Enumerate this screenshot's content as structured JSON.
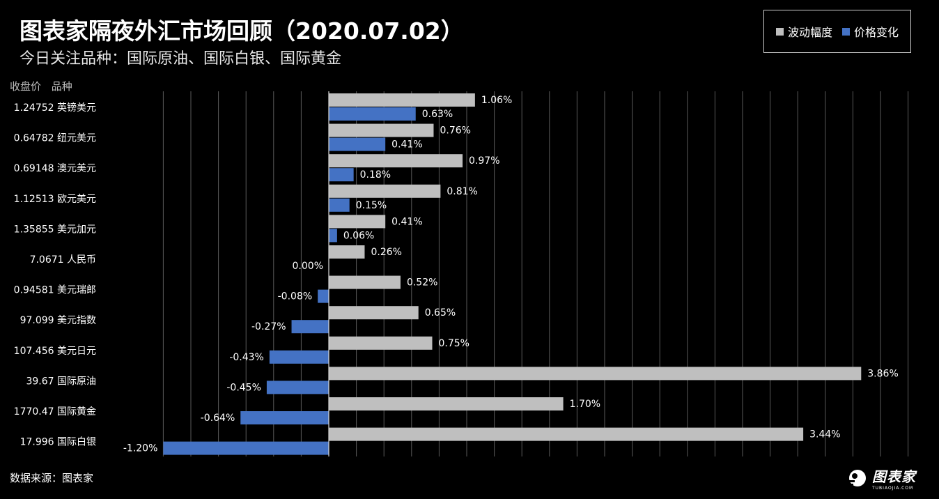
{
  "title": "图表家隔夜外汇市场回顾（2020.07.02）",
  "subtitle": "今日关注品种：国际原油、国际白银、国际黄金",
  "columns": {
    "price": "收盘价",
    "name": "品种"
  },
  "source": "数据来源：图表家",
  "logo": {
    "text": "图表家",
    "sub": "TUBIAOJIA.COM"
  },
  "colors": {
    "amplitude": "#bfbfbf",
    "change": "#4472c4",
    "background": "#000000",
    "grid": "#5a5a5a"
  },
  "chart_data": {
    "type": "bar",
    "orientation": "horizontal",
    "xlim": [
      -1.2,
      4.2
    ],
    "grid": true,
    "legend": "top-right",
    "categories": [
      "英镑美元",
      "纽元美元",
      "澳元美元",
      "欧元美元",
      "美元加元",
      "人民币",
      "美元瑞郎",
      "美元指数",
      "美元日元",
      "国际原油",
      "国际黄金",
      "国际白银"
    ],
    "close_prices": [
      "1.24752",
      "0.64782",
      "0.69148",
      "1.12513",
      "1.35855",
      "7.0671",
      "0.94581",
      "97.099",
      "107.456",
      "39.67",
      "1770.47",
      "17.996"
    ],
    "series": [
      {
        "name": "波动幅度",
        "values": [
          1.06,
          0.76,
          0.97,
          0.81,
          0.41,
          0.26,
          0.52,
          0.65,
          0.75,
          3.86,
          1.7,
          3.44
        ],
        "labels": [
          "1.06%",
          "0.76%",
          "0.97%",
          "0.81%",
          "0.41%",
          "0.26%",
          "0.52%",
          "0.65%",
          "0.75%",
          "3.86%",
          "1.70%",
          "3.44%"
        ]
      },
      {
        "name": "价格变化",
        "values": [
          0.63,
          0.41,
          0.18,
          0.15,
          0.06,
          0.0,
          -0.08,
          -0.27,
          -0.43,
          -0.45,
          -0.64,
          -1.2
        ],
        "labels": [
          "0.63%",
          "0.41%",
          "0.18%",
          "0.15%",
          "0.06%",
          "0.00%",
          "-0.08%",
          "-0.27%",
          "-0.43%",
          "-0.45%",
          "-0.64%",
          "-1.20%"
        ]
      }
    ]
  }
}
